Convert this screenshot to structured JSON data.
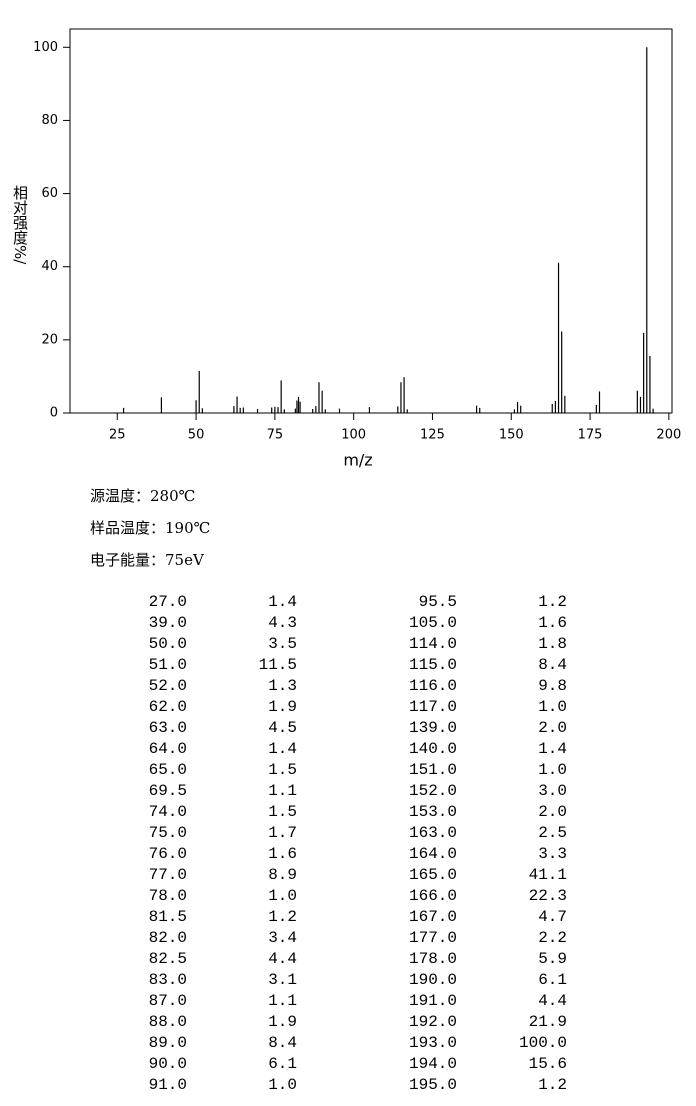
{
  "chart_data": {
    "type": "bar",
    "xlabel": "m/z",
    "ylabel": "相对强度%/",
    "x": [
      27,
      39,
      50,
      51,
      52,
      62,
      63,
      64,
      65,
      69.5,
      74,
      75,
      76,
      77,
      78,
      81.5,
      82,
      82.5,
      83,
      87,
      88,
      89,
      90,
      91,
      95.5,
      105,
      114,
      115,
      116,
      117,
      139,
      140,
      151,
      152,
      153,
      163,
      164,
      165,
      166,
      167,
      177,
      178,
      190,
      191,
      192,
      193,
      194,
      195
    ],
    "values": [
      1.4,
      4.3,
      3.5,
      11.5,
      1.3,
      1.9,
      4.5,
      1.4,
      1.5,
      1.1,
      1.5,
      1.7,
      1.6,
      8.9,
      1.0,
      1.2,
      3.4,
      4.4,
      3.1,
      1.1,
      1.9,
      8.4,
      6.1,
      1.0,
      1.2,
      1.6,
      1.8,
      8.4,
      9.8,
      1.0,
      2.0,
      1.4,
      1.0,
      3.0,
      2.0,
      2.5,
      3.3,
      41.1,
      22.3,
      4.7,
      2.2,
      5.9,
      6.1,
      4.4,
      21.9,
      100.0,
      15.6,
      1.2
    ],
    "color": "#000000",
    "xlim": [
      10,
      201
    ],
    "ylim": [
      0,
      105
    ],
    "xticks": [
      25,
      50,
      75,
      100,
      125,
      150,
      175,
      200
    ],
    "yticks": [
      0,
      20,
      40,
      60,
      80,
      100
    ]
  },
  "info": [
    "源温度：280℃",
    "样品温度：190℃",
    "电子能量：75eV"
  ],
  "table": {
    "rows": [
      [
        "27.0",
        "1.4",
        "95.5",
        "1.2"
      ],
      [
        "39.0",
        "4.3",
        "105.0",
        "1.6"
      ],
      [
        "50.0",
        "3.5",
        "114.0",
        "1.8"
      ],
      [
        "51.0",
        "11.5",
        "115.0",
        "8.4"
      ],
      [
        "52.0",
        "1.3",
        "116.0",
        "9.8"
      ],
      [
        "62.0",
        "1.9",
        "117.0",
        "1.0"
      ],
      [
        "63.0",
        "4.5",
        "139.0",
        "2.0"
      ],
      [
        "64.0",
        "1.4",
        "140.0",
        "1.4"
      ],
      [
        "65.0",
        "1.5",
        "151.0",
        "1.0"
      ],
      [
        "69.5",
        "1.1",
        "152.0",
        "3.0"
      ],
      [
        "74.0",
        "1.5",
        "153.0",
        "2.0"
      ],
      [
        "75.0",
        "1.7",
        "163.0",
        "2.5"
      ],
      [
        "76.0",
        "1.6",
        "164.0",
        "3.3"
      ],
      [
        "77.0",
        "8.9",
        "165.0",
        "41.1"
      ],
      [
        "78.0",
        "1.0",
        "166.0",
        "22.3"
      ],
      [
        "81.5",
        "1.2",
        "167.0",
        "4.7"
      ],
      [
        "82.0",
        "3.4",
        "177.0",
        "2.2"
      ],
      [
        "82.5",
        "4.4",
        "178.0",
        "5.9"
      ],
      [
        "83.0",
        "3.1",
        "190.0",
        "6.1"
      ],
      [
        "87.0",
        "1.1",
        "191.0",
        "4.4"
      ],
      [
        "88.0",
        "1.9",
        "192.0",
        "21.9"
      ],
      [
        "89.0",
        "8.4",
        "193.0",
        "100.0"
      ],
      [
        "90.0",
        "6.1",
        "194.0",
        "15.6"
      ],
      [
        "91.0",
        "1.0",
        "195.0",
        "1.2"
      ]
    ]
  }
}
